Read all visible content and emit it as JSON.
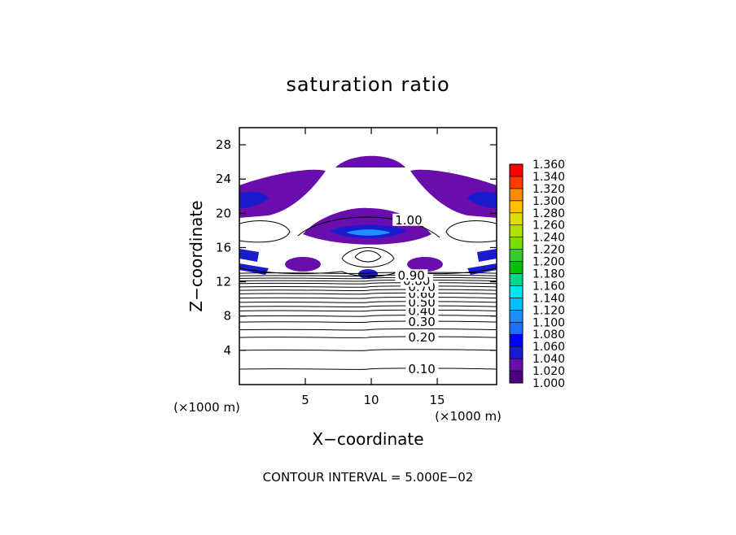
{
  "chart_data": {
    "type": "contour",
    "title": "saturation ratio",
    "xlabel": "X−coordinate",
    "ylabel": "Z−coordinate",
    "x_unit_label": "(×1000 m)",
    "y_unit_label": "(×1000 m)",
    "xlim": [
      0,
      19.5
    ],
    "ylim": [
      0,
      30
    ],
    "x_ticks": [
      5,
      10,
      15
    ],
    "y_ticks": [
      4,
      8,
      12,
      16,
      20,
      24,
      28
    ],
    "footer": "CONTOUR INTERVAL = 5.000E−02",
    "colorbar": {
      "levels": [
        "1.000",
        "1.020",
        "1.040",
        "1.060",
        "1.080",
        "1.100",
        "1.120",
        "1.140",
        "1.160",
        "1.180",
        "1.200",
        "1.220",
        "1.240",
        "1.260",
        "1.280",
        "1.300",
        "1.320",
        "1.340",
        "1.360"
      ],
      "colors": [
        "#4b0082",
        "#6a0dad",
        "#1a1acf",
        "#0000ff",
        "#1e6eff",
        "#1e90ff",
        "#00bfff",
        "#00e5ee",
        "#00d98b",
        "#00c000",
        "#33cc33",
        "#7cdf00",
        "#b0e000",
        "#e0e000",
        "#ffc000",
        "#ff8c00",
        "#ff3c00",
        "#ff0000",
        "#ff7f7f"
      ]
    },
    "contour_labels": [
      {
        "x": 12.8,
        "z": 1.8,
        "text": "0.10"
      },
      {
        "x": 12.8,
        "z": 5.5,
        "text": "0.20"
      },
      {
        "x": 12.8,
        "z": 7.3,
        "text": "0.30"
      },
      {
        "x": 12.8,
        "z": 8.6,
        "text": "0.40"
      },
      {
        "x": 12.8,
        "z": 9.6,
        "text": "0.50"
      },
      {
        "x": 12.8,
        "z": 10.6,
        "text": "0.60"
      },
      {
        "x": 12.8,
        "z": 11.4,
        "text": "0.70"
      },
      {
        "x": 12.4,
        "z": 12.1,
        "text": "0.80"
      },
      {
        "x": 12.0,
        "z": 12.7,
        "text": "0.90"
      },
      {
        "x": 11.8,
        "z": 19.2,
        "text": "1.00"
      }
    ],
    "horizontal_contour_levels": [
      {
        "z": 1.8,
        "level": 0.1
      },
      {
        "z": 4.0,
        "level": 0.15
      },
      {
        "z": 5.5,
        "level": 0.2
      },
      {
        "z": 6.4,
        "level": 0.25
      },
      {
        "z": 7.3,
        "level": 0.3
      },
      {
        "z": 8.0,
        "level": 0.35
      },
      {
        "z": 8.6,
        "level": 0.4
      },
      {
        "z": 9.1,
        "level": 0.45
      },
      {
        "z": 9.6,
        "level": 0.5
      },
      {
        "z": 10.1,
        "level": 0.55
      },
      {
        "z": 10.6,
        "level": 0.6
      },
      {
        "z": 11.0,
        "level": 0.65
      },
      {
        "z": 11.4,
        "level": 0.7
      },
      {
        "z": 11.8,
        "level": 0.75
      },
      {
        "z": 12.1,
        "level": 0.8
      },
      {
        "z": 12.4,
        "level": 0.85
      },
      {
        "z": 12.7,
        "level": 0.9
      },
      {
        "z": 13.0,
        "level": 0.95
      }
    ]
  }
}
